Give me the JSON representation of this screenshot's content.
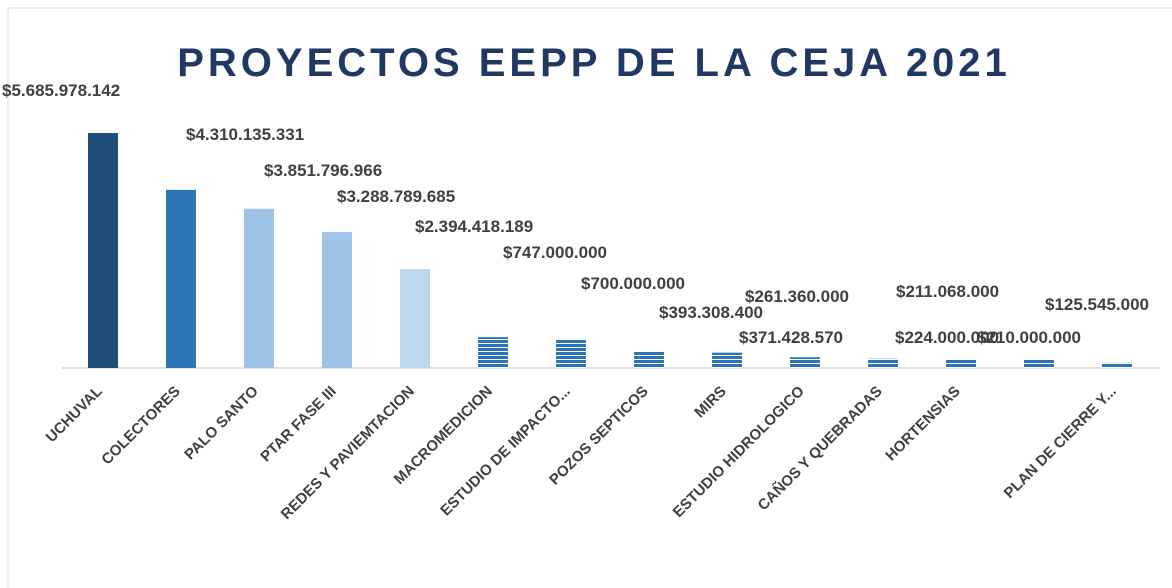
{
  "chart_data": {
    "type": "bar",
    "title": "PROYECTOS EEPP DE LA CEJA 2021",
    "categories": [
      "UCHUVAL",
      "COLECTORES",
      "PALO SANTO",
      "PTAR FASE III",
      "REDES Y PAVIEMTACION",
      "MACROMEDICION",
      "ESTUDIO DE IMPACTO...",
      "POZOS SEPTICOS",
      "MIRS",
      "ESTUDIO HIDROLOGICO",
      "CAÑOS Y QUEBRADAS",
      "HORTENSIAS",
      null,
      "PLAN DE CIERRE Y..."
    ],
    "values": [
      5685978142,
      4310135331,
      3851796966,
      3288789685,
      2394418189,
      747000000,
      700000000,
      393308400,
      371428570,
      261360000,
      224000000,
      211068000,
      210000000,
      125545000
    ],
    "value_labels": [
      "$5.685.978.142",
      "$4.310.135.331",
      "$3.851.796.966",
      "$3.288.789.685",
      "$2.394.418.189",
      "$747.000.000",
      "$700.000.000",
      "$393.308.400",
      "$371.428.570",
      "$261.360.000",
      "$224.000.000",
      "$211.068.000",
      "$210.000.000",
      "$125.545.000"
    ],
    "colors": [
      "#1f4e79",
      "#2e75b6",
      "#9dc3e6",
      "#9dc3e6",
      "#bdd7ee",
      "#2e75b6",
      "#2e75b6",
      "#2e75b6",
      "#2e75b6",
      "#2e75b6",
      "#2e75b6",
      "#2e75b6",
      "#2e75b6",
      "#2e75b6"
    ]
  }
}
